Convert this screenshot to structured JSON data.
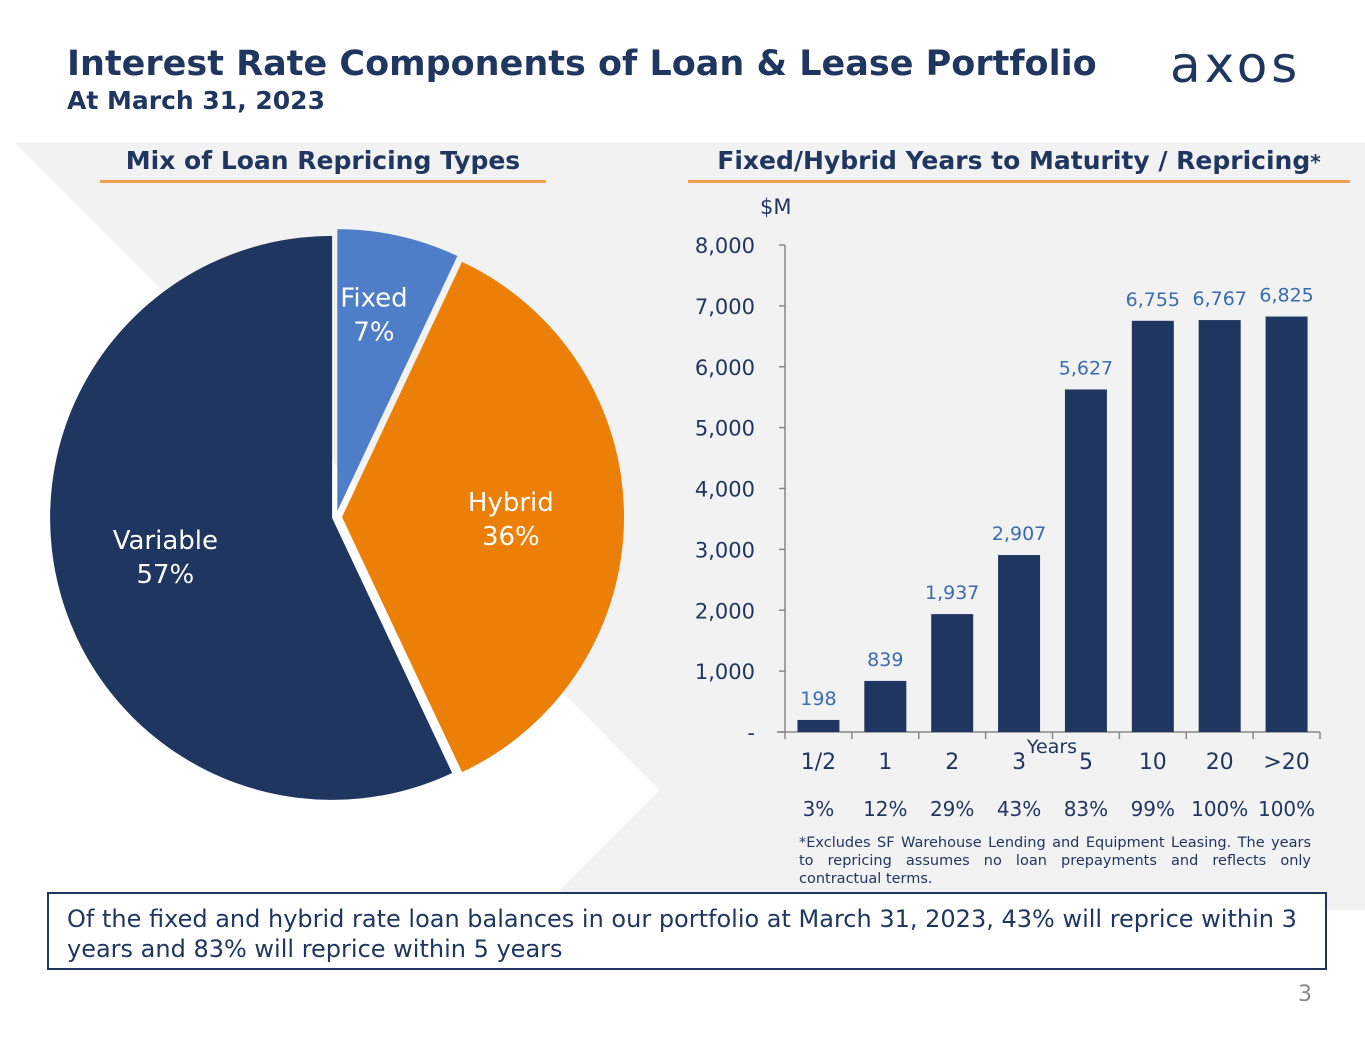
{
  "header": {
    "title": "Interest Rate Components of Loan & Lease Portfolio",
    "subtitle": "At March 31, 2023",
    "logo_text": "axos"
  },
  "sections": {
    "left_title": "Mix of Loan Repricing Types",
    "right_title": "Fixed/Hybrid Years to Maturity / Repricing",
    "right_title_mark": "*"
  },
  "colors": {
    "navy": "#1f3760",
    "orange": "#eb7f07",
    "blue": "#4f7ec8",
    "label_blue": "#3a6bb0",
    "underline": "#f0a050",
    "background": "#f2f2f2"
  },
  "chart_data": [
    {
      "type": "pie",
      "title": "Mix of Loan Repricing Types",
      "slices": [
        {
          "label": "Fixed",
          "value": 7,
          "display": "7%",
          "color": "#4f7ec8"
        },
        {
          "label": "Hybrid",
          "value": 36,
          "display": "36%",
          "color": "#eb7f07"
        },
        {
          "label": "Variable",
          "value": 57,
          "display": "57%",
          "color": "#1f3760"
        }
      ]
    },
    {
      "type": "bar",
      "title": "Fixed/Hybrid Years to Maturity / Repricing",
      "ylabel": "$M",
      "xlabel": "Years",
      "ylim": [
        0,
        8000
      ],
      "yticks": [
        0,
        1000,
        2000,
        3000,
        4000,
        5000,
        6000,
        7000,
        8000
      ],
      "ytick_labels": [
        "-",
        "1,000",
        "2,000",
        "3,000",
        "4,000",
        "5,000",
        "6,000",
        "7,000",
        "8,000"
      ],
      "categories": [
        "1/2",
        "1",
        "2",
        "3",
        "5",
        "10",
        "20",
        ">20"
      ],
      "values": [
        198,
        839,
        1937,
        2907,
        5627,
        6755,
        6767,
        6825
      ],
      "value_labels": [
        "198",
        "839",
        "1,937",
        "2,907",
        "5,627",
        "6,755",
        "6,767",
        "6,825"
      ],
      "cumulative_pct": [
        "3%",
        "12%",
        "29%",
        "43%",
        "83%",
        "99%",
        "100%",
        "100%"
      ],
      "bar_color": "#1f3760"
    }
  ],
  "footnote": "*Excludes SF Warehouse Lending and Equipment Leasing. The years to repricing assumes no loan prepayments and reflects only contractual terms.",
  "summary": "Of the fixed and hybrid rate loan balances in our portfolio at March 31, 2023, 43% will reprice within 3 years and 83% will reprice within 5 years",
  "page_number": "3"
}
